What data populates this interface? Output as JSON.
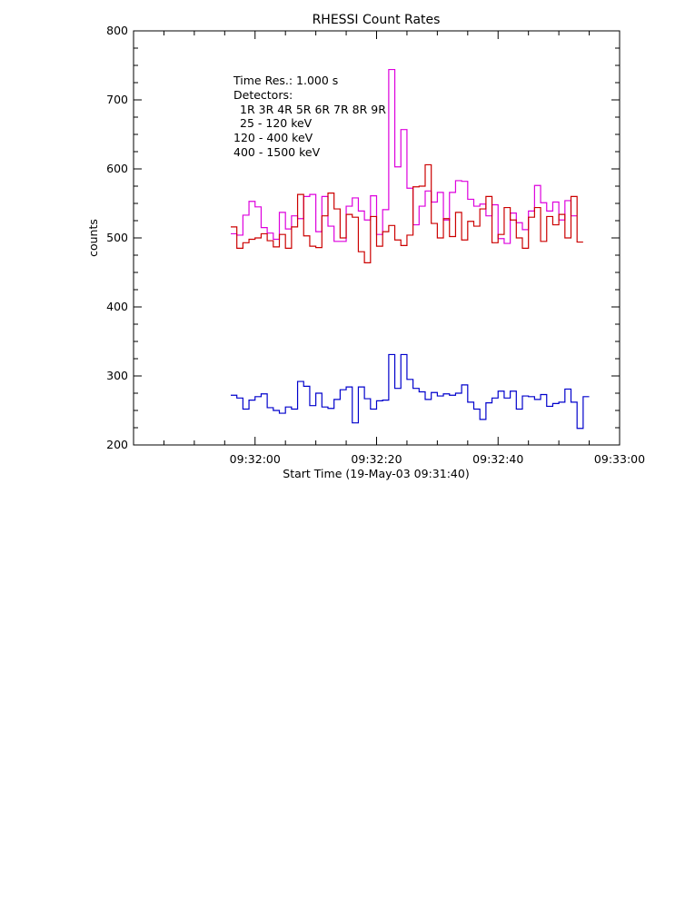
{
  "chart_data": {
    "type": "line",
    "title": "RHESSI Count Rates",
    "xlabel": "Start Time (19-May-03 09:31:40)",
    "ylabel": "counts",
    "xlim": [
      0,
      80
    ],
    "ylim": [
      200,
      800
    ],
    "x_ticks": [
      {
        "value": 20,
        "label": "09:32:00"
      },
      {
        "value": 40,
        "label": "09:32:20"
      },
      {
        "value": 60,
        "label": "09:32:40"
      },
      {
        "value": 80,
        "label": "09:33:00"
      }
    ],
    "x_minor_ticks": [
      5,
      10,
      15,
      25,
      30,
      35,
      45,
      50,
      55,
      65,
      70,
      75
    ],
    "y_ticks": [
      200,
      300,
      400,
      500,
      600,
      700,
      800
    ],
    "y_minor_ticks": [
      225,
      250,
      275,
      325,
      350,
      375,
      425,
      450,
      475,
      525,
      550,
      575,
      625,
      650,
      675,
      725,
      750,
      775
    ],
    "grid": false,
    "legend": {
      "position": "top-left",
      "time_res": "Time Res.: 1.000 s",
      "detectors_label": "Detectors:",
      "detectors": "1R 3R 4R 5R 6R 7R 8R 9R"
    },
    "x_start": 16,
    "step": 1,
    "series": [
      {
        "name": "25 - 120 keV",
        "color": "#0000cc",
        "values": [
          272,
          268,
          252,
          265,
          270,
          274,
          254,
          250,
          246,
          255,
          252,
          292,
          285,
          257,
          275,
          255,
          253,
          266,
          280,
          284,
          232,
          284,
          267,
          252,
          264,
          265,
          331,
          282,
          331,
          295,
          282,
          277,
          266,
          276,
          271,
          274,
          272,
          275,
          287,
          262,
          252,
          237,
          261,
          268,
          278,
          268,
          278,
          252,
          271,
          270,
          266,
          273,
          256,
          260,
          262,
          281,
          262,
          224,
          270
        ]
      },
      {
        "name": "120 - 400 keV",
        "color": "#dd00dd",
        "values": [
          506,
          504,
          533,
          553,
          545,
          515,
          507,
          498,
          537,
          513,
          532,
          528,
          560,
          563,
          509,
          560,
          517,
          495,
          495,
          546,
          558,
          539,
          526,
          561,
          505,
          541,
          744,
          603,
          657,
          572,
          519,
          546,
          568,
          552,
          566,
          526,
          566,
          583,
          582,
          556,
          546,
          549,
          532,
          548,
          499,
          492,
          536,
          522,
          512,
          539,
          576,
          551,
          539,
          552,
          526,
          554,
          532
        ]
      },
      {
        "name": "400 - 1500 keV",
        "color": "#cc0000",
        "values": [
          516,
          485,
          493,
          498,
          500,
          506,
          496,
          487,
          505,
          485,
          516,
          563,
          503,
          488,
          486,
          532,
          565,
          542,
          500,
          534,
          530,
          480,
          464,
          531,
          488,
          509,
          518,
          497,
          489,
          504,
          574,
          575,
          606,
          521,
          500,
          528,
          502,
          537,
          497,
          524,
          517,
          542,
          560,
          493,
          505,
          544,
          526,
          500,
          485,
          530,
          544,
          495,
          531,
          519,
          534,
          500,
          560,
          494
        ]
      }
    ]
  }
}
